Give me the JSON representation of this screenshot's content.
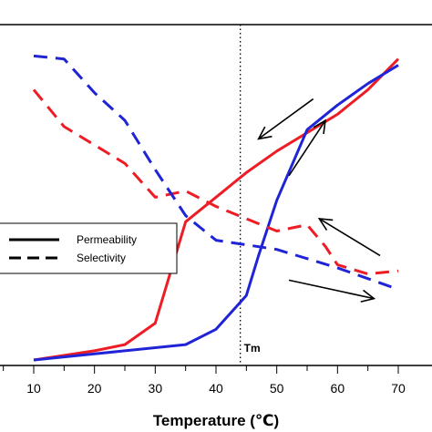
{
  "chart_data": {
    "type": "line",
    "xlabel": "Temperature (℃)",
    "ylabel": "",
    "title": "",
    "x_ticks": [
      10,
      20,
      30,
      40,
      50,
      60,
      70
    ],
    "xlim": [
      5,
      74
    ],
    "y_units": "relative (no tick labels shown)",
    "ylim": [
      0,
      100
    ],
    "grid": false,
    "legend": {
      "placement": "center-left",
      "entries": [
        {
          "label": "Permeability",
          "style": "solid"
        },
        {
          "label": "Selectivity",
          "style": "dashed"
        }
      ]
    },
    "reference_line": {
      "x": 44,
      "label": "Tm",
      "style": "dotted"
    },
    "series": [
      {
        "style": "solid",
        "color": "#ee1c25",
        "x": [
          10,
          20,
          25,
          30,
          35,
          40,
          45,
          50,
          55,
          60,
          65,
          70
        ],
        "y": [
          0,
          3,
          5,
          12,
          45,
          53,
          61,
          68,
          74,
          80,
          88,
          98
        ]
      },
      {
        "style": "solid",
        "color": "#1f24d6",
        "x": [
          10,
          20,
          30,
          35,
          40,
          45,
          47,
          50,
          55,
          60,
          65,
          70
        ],
        "y": [
          0,
          2,
          4,
          5,
          10,
          21,
          34,
          52,
          75,
          83,
          90,
          96
        ]
      },
      {
        "style": "dashed",
        "color": "#ee1c25",
        "x": [
          10,
          15,
          20,
          25,
          30,
          35,
          40,
          45,
          50,
          55,
          58,
          60,
          65,
          70
        ],
        "y": [
          88,
          76,
          70,
          64,
          53,
          55,
          50,
          46,
          42,
          44,
          37,
          31,
          28,
          29
        ]
      },
      {
        "style": "dashed",
        "color": "#1f24d6",
        "x": [
          10,
          15,
          20,
          25,
          30,
          35,
          40,
          50,
          60,
          70
        ],
        "y": [
          99,
          98,
          87,
          78,
          62,
          47,
          39,
          36,
          30,
          23
        ]
      }
    ],
    "arrows": [
      {
        "color": "#000000",
        "from": [
          56,
          85
        ],
        "to": [
          47,
          72
        ]
      },
      {
        "color": "#000000",
        "from": [
          52,
          60
        ],
        "to": [
          58,
          78
        ]
      },
      {
        "color": "#000000",
        "from": [
          67,
          34
        ],
        "to": [
          57,
          46
        ]
      },
      {
        "color": "#000000",
        "from": [
          52,
          26
        ],
        "to": [
          66,
          20
        ]
      }
    ]
  }
}
